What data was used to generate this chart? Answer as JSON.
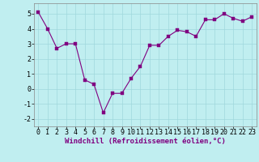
{
  "x": [
    0,
    1,
    2,
    3,
    4,
    5,
    6,
    7,
    8,
    9,
    10,
    11,
    12,
    13,
    14,
    15,
    16,
    17,
    18,
    19,
    20,
    21,
    22,
    23
  ],
  "y": [
    5.1,
    4.0,
    2.7,
    3.0,
    3.0,
    0.6,
    0.3,
    -1.6,
    -0.3,
    -0.3,
    0.7,
    1.5,
    2.9,
    2.9,
    3.5,
    3.9,
    3.8,
    3.5,
    4.6,
    4.6,
    5.0,
    4.7,
    4.5,
    4.8
  ],
  "line_color": "#800080",
  "marker_color": "#800080",
  "bg_color": "#c0eef0",
  "grid_color": "#a0d8dc",
  "xlabel": "Windchill (Refroidissement éolien,°C)",
  "xlim": [
    -0.5,
    23.5
  ],
  "ylim": [
    -2.5,
    5.7
  ],
  "yticks": [
    -2,
    -1,
    0,
    1,
    2,
    3,
    4,
    5
  ],
  "xticks": [
    0,
    1,
    2,
    3,
    4,
    5,
    6,
    7,
    8,
    9,
    10,
    11,
    12,
    13,
    14,
    15,
    16,
    17,
    18,
    19,
    20,
    21,
    22,
    23
  ],
  "xlabel_fontsize": 6.5,
  "tick_fontsize": 6.0,
  "marker_size": 2.5,
  "linewidth": 0.8
}
